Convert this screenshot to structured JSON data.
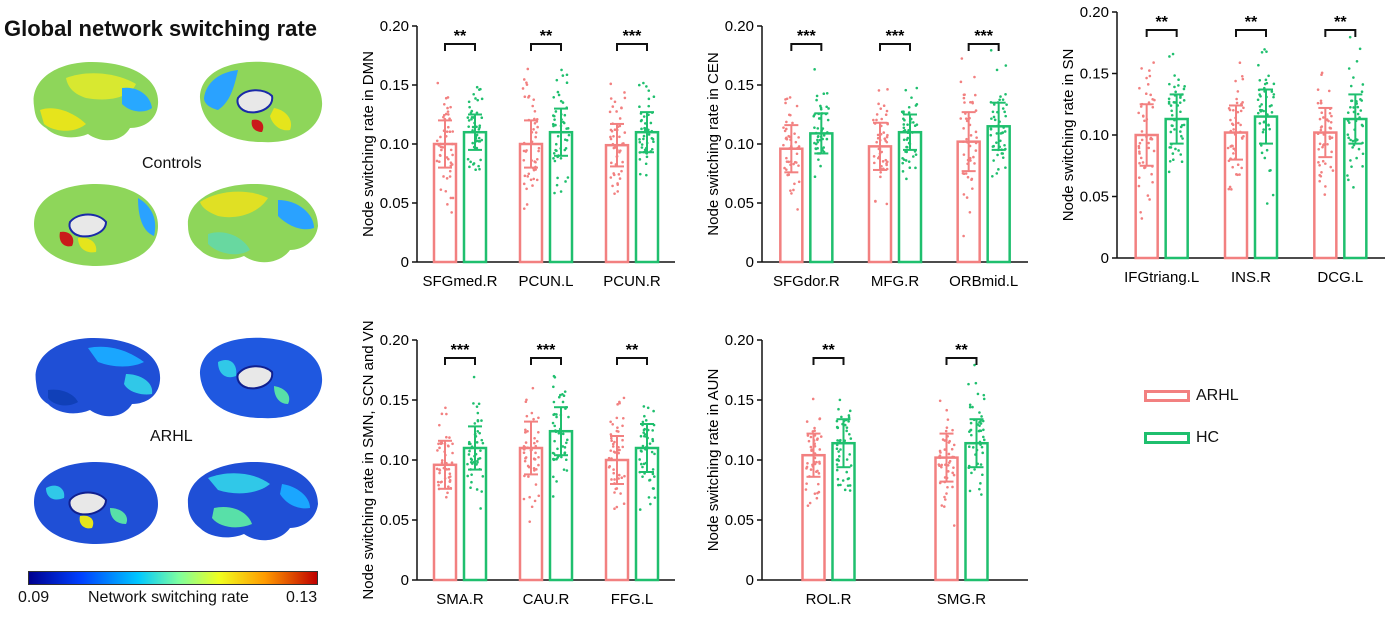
{
  "figure": {
    "title": "Global network switching rate",
    "groups": [
      "Controls",
      "ARHL"
    ],
    "colorbar": {
      "min_label": "0.09",
      "max_label": "0.13",
      "label": "Network switching rate"
    }
  },
  "legend": [
    {
      "label": "ARHL",
      "color": "#f28080"
    },
    {
      "label": "HC",
      "color": "#1fbf6e"
    }
  ],
  "chart_data": [
    {
      "type": "bar",
      "ylabel": "Node switching rate in DMN",
      "ylim": [
        0,
        0.2
      ],
      "yticks": [
        "0",
        "0.05",
        "0.10",
        "0.15",
        "0.20"
      ],
      "categories": [
        "SFGmed.R",
        "PCUN.L",
        "PCUN.R"
      ],
      "significance": [
        "**",
        "**",
        "***"
      ],
      "series": [
        {
          "name": "ARHL",
          "values": [
            0.1,
            0.1,
            0.099
          ],
          "sd": [
            0.02,
            0.02,
            0.018
          ]
        },
        {
          "name": "HC",
          "values": [
            0.11,
            0.11,
            0.11
          ],
          "sd": [
            0.015,
            0.02,
            0.017
          ]
        }
      ]
    },
    {
      "type": "bar",
      "ylabel": "Node switching rate in CEN",
      "ylim": [
        0,
        0.2
      ],
      "yticks": [
        "0",
        "0.05",
        "0.10",
        "0.15",
        "0.20"
      ],
      "categories": [
        "SFGdor.R",
        "MFG.R",
        "ORBmid.L"
      ],
      "significance": [
        "***",
        "***",
        "***"
      ],
      "series": [
        {
          "name": "ARHL",
          "values": [
            0.096,
            0.098,
            0.102
          ],
          "sd": [
            0.02,
            0.02,
            0.025
          ]
        },
        {
          "name": "HC",
          "values": [
            0.109,
            0.11,
            0.115
          ],
          "sd": [
            0.017,
            0.015,
            0.02
          ]
        }
      ]
    },
    {
      "type": "bar",
      "ylabel": "Node switching rate in SN",
      "ylim": [
        0,
        0.2
      ],
      "yticks": [
        "0",
        "0.05",
        "0.10",
        "0.15",
        "0.20"
      ],
      "categories": [
        "IFGtriang.L",
        "INS.R",
        "DCG.L"
      ],
      "significance": [
        "**",
        "**",
        "**"
      ],
      "series": [
        {
          "name": "ARHL",
          "values": [
            0.1,
            0.102,
            0.102
          ],
          "sd": [
            0.025,
            0.022,
            0.02
          ]
        },
        {
          "name": "HC",
          "values": [
            0.113,
            0.115,
            0.113
          ],
          "sd": [
            0.02,
            0.022,
            0.02
          ]
        }
      ]
    },
    {
      "type": "bar",
      "ylabel": "Node switching rate in SMN, SCN and VN",
      "ylim": [
        0,
        0.2
      ],
      "yticks": [
        "0",
        "0.05",
        "0.10",
        "0.15",
        "0.20"
      ],
      "categories": [
        "SMA.R",
        "CAU.R",
        "FFG.L"
      ],
      "significance": [
        "***",
        "***",
        "**"
      ],
      "series": [
        {
          "name": "ARHL",
          "values": [
            0.096,
            0.11,
            0.1
          ],
          "sd": [
            0.02,
            0.022,
            0.02
          ]
        },
        {
          "name": "HC",
          "values": [
            0.11,
            0.124,
            0.11
          ],
          "sd": [
            0.018,
            0.02,
            0.02
          ]
        }
      ]
    },
    {
      "type": "bar",
      "ylabel": "Node switching rate in AUN",
      "ylim": [
        0,
        0.2
      ],
      "yticks": [
        "0",
        "0.05",
        "0.10",
        "0.15",
        "0.20"
      ],
      "categories": [
        "ROL.R",
        "SMG.R"
      ],
      "significance": [
        "**",
        "**"
      ],
      "series": [
        {
          "name": "ARHL",
          "values": [
            0.104,
            0.102
          ],
          "sd": [
            0.018,
            0.02
          ]
        },
        {
          "name": "HC",
          "values": [
            0.114,
            0.114
          ],
          "sd": [
            0.02,
            0.02
          ]
        }
      ]
    }
  ]
}
